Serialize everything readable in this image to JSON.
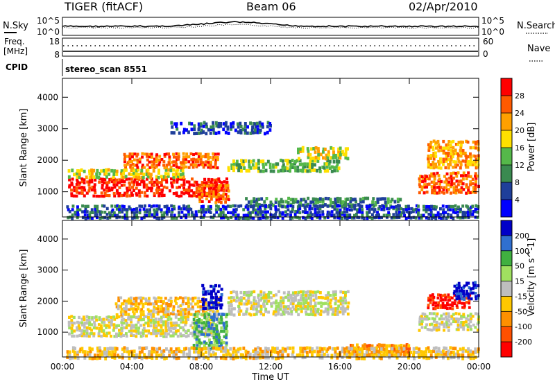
{
  "header": {
    "radar": "TIGER (fitACF)",
    "beam": "Beam 06",
    "date": "02/Apr/2010"
  },
  "chart_data": [
    {
      "type": "line",
      "panel": "noise",
      "left_label": "N.Sky",
      "right_label": "N.Search",
      "left_ticks": [
        "10^5",
        "10^0"
      ],
      "right_ticks": [
        "10^5",
        "10^0"
      ],
      "series": [
        {
          "name": "N.Sky",
          "style": "solid"
        },
        {
          "name": "N.Search",
          "style": "dotted"
        }
      ]
    },
    {
      "type": "line",
      "panel": "freq-nave",
      "left_label_1": "Freq.",
      "left_label_2": "[MHz]",
      "right_label": "Nave",
      "left_ticks": [
        "18",
        "8"
      ],
      "right_ticks": [
        "60",
        "0"
      ],
      "series": [
        {
          "name": "Freq.",
          "style": "solid"
        },
        {
          "name": "Nave",
          "style": "dotted"
        }
      ]
    },
    {
      "type": "table",
      "panel": "cpid",
      "label": "CPID",
      "value": "stereo_scan 8551"
    },
    {
      "type": "heatmap",
      "panel": "power",
      "ylabel": "Slant Range [km]",
      "yticks": [
        "4000",
        "3000",
        "2000",
        "1000"
      ],
      "ylim": [
        200,
        4600
      ],
      "colorbar_label": "Power [dB]",
      "colorbar_ticks": [
        "28",
        "24",
        "20",
        "16",
        "12",
        "8",
        "4"
      ],
      "colors": [
        "#0000ff",
        "#1f3f9a",
        "#3a8a50",
        "#55b84a",
        "#ffe000",
        "#ffa000",
        "#ff5a00",
        "#ff0000"
      ],
      "bands": [
        {
          "t0": 0.3,
          "t1": 9.5,
          "r0": 900,
          "r1": 1500,
          "level": 7
        },
        {
          "t0": 0.3,
          "t1": 7.0,
          "r0": 1500,
          "r1": 1800,
          "level": 4
        },
        {
          "t0": 3.5,
          "t1": 9.0,
          "r0": 1800,
          "r1": 2300,
          "level": 6
        },
        {
          "t0": 7.8,
          "t1": 9.6,
          "r0": 700,
          "r1": 1300,
          "level": 6
        },
        {
          "t0": 9.5,
          "t1": 16.0,
          "r0": 1700,
          "r1": 2100,
          "level": 3
        },
        {
          "t0": 13.5,
          "t1": 16.5,
          "r0": 2100,
          "r1": 2500,
          "level": 4
        },
        {
          "t0": 10.5,
          "t1": 19.5,
          "r0": 600,
          "r1": 900,
          "level": 2
        },
        {
          "t0": 20.5,
          "t1": 24.0,
          "r0": 1000,
          "r1": 1700,
          "level": 6
        },
        {
          "t0": 21.0,
          "t1": 24.0,
          "r0": 1800,
          "r1": 2700,
          "level": 5
        },
        {
          "t0": 6.2,
          "t1": 12.0,
          "r0": 2900,
          "r1": 3300,
          "level": 1
        },
        {
          "t0": 0.2,
          "t1": 24.0,
          "r0": 200,
          "r1": 650,
          "level": 1
        }
      ]
    },
    {
      "type": "heatmap",
      "panel": "velocity",
      "xlabel": "Time UT",
      "ylabel": "Slant Range [km]",
      "xticks": [
        "00:00",
        "04:00",
        "08:00",
        "12:00",
        "16:00",
        "20:00",
        "00:00"
      ],
      "xlim": [
        0,
        24
      ],
      "yticks": [
        "4000",
        "3000",
        "2000",
        "1000"
      ],
      "ylim": [
        200,
        4600
      ],
      "colorbar_label": "Velocity [m s^-1]",
      "colorbar_ticks": [
        "200",
        "100",
        "50",
        "15",
        "-15",
        "-50",
        "-100",
        "-200"
      ],
      "colors": [
        "#ff0000",
        "#ff5000",
        "#ff9000",
        "#ffc800",
        "#bebebe",
        "#a0e060",
        "#40b040",
        "#3070d0",
        "#0000c8"
      ],
      "bands": [
        {
          "t0": 0.3,
          "t1": 9.0,
          "r0": 900,
          "r1": 1600,
          "level": 4
        },
        {
          "t0": 3.0,
          "t1": 9.0,
          "r0": 1600,
          "r1": 2200,
          "level": 3
        },
        {
          "t0": 7.5,
          "t1": 9.5,
          "r0": 500,
          "r1": 1700,
          "level": 6
        },
        {
          "t0": 8.0,
          "t1": 9.2,
          "r0": 1800,
          "r1": 2600,
          "level": 8
        },
        {
          "t0": 9.5,
          "t1": 16.5,
          "r0": 1600,
          "r1": 2400,
          "level": 4
        },
        {
          "t0": 16.5,
          "t1": 20.0,
          "r0": 300,
          "r1": 700,
          "level": 2
        },
        {
          "t0": 20.5,
          "t1": 24.0,
          "r0": 1100,
          "r1": 1700,
          "level": 4
        },
        {
          "t0": 21.0,
          "t1": 23.5,
          "r0": 1800,
          "r1": 2300,
          "level": 0
        },
        {
          "t0": 22.5,
          "t1": 24.0,
          "r0": 2100,
          "r1": 2700,
          "level": 8
        },
        {
          "t0": 0.2,
          "t1": 24.0,
          "r0": 200,
          "r1": 600,
          "level": 3
        }
      ]
    }
  ]
}
